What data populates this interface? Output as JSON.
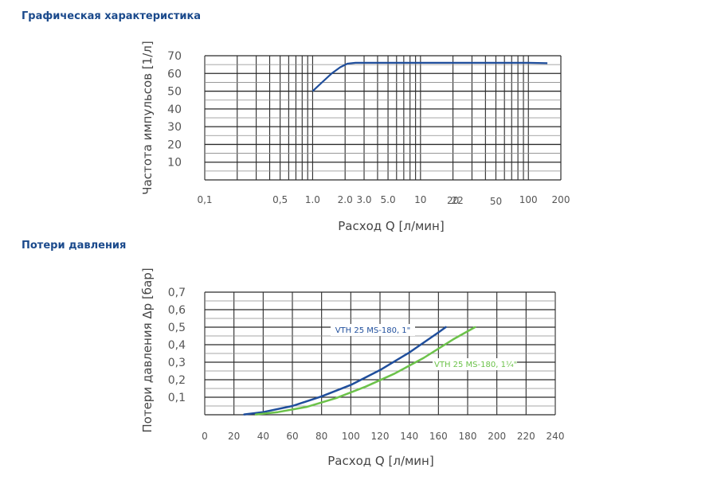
{
  "charts": {
    "characteristic": {
      "section_title": "Графическая характеристика"
    },
    "pressure_loss": {
      "section_title": "Потери давления"
    }
  },
  "chart_data": [
    {
      "type": "line",
      "title": "Графическая характеристика",
      "xlabel": "Расход Q [л/мин]",
      "ylabel": "Частота импульсов [1/л]",
      "xscale": "log",
      "xlim": [
        0.1,
        200
      ],
      "ylim": [
        0,
        70
      ],
      "grid": true,
      "x_tick_labels": [
        "0,1",
        "0,5",
        "1.0",
        "2.0",
        "3.0",
        "5.0",
        "10",
        "20",
        "22",
        "50",
        "100",
        "200"
      ],
      "x_tick_values": [
        0.1,
        0.5,
        1.0,
        2.0,
        3.0,
        5.0,
        10,
        20,
        22,
        50,
        100,
        200
      ],
      "y_tick_labels": [
        "10",
        "20",
        "30",
        "40",
        "50",
        "60",
        "70"
      ],
      "y_tick_values": [
        10,
        20,
        30,
        40,
        50,
        60,
        70
      ],
      "series": [
        {
          "color": "#1f4e9c",
          "x": [
            1.0,
            1.2,
            1.5,
            1.8,
            2.1,
            2.5,
            3.0,
            5.0,
            10,
            20,
            50,
            100,
            150
          ],
          "y": [
            50,
            54.5,
            60,
            63.5,
            65.5,
            66,
            66,
            66,
            66,
            66,
            66,
            66,
            65.8
          ]
        }
      ]
    },
    {
      "type": "line",
      "title": "Потери давления",
      "xlabel": "Расход Q [л/мин]",
      "ylabel": "Потери давления Δp [бар]",
      "xlim": [
        0,
        240
      ],
      "ylim": [
        0,
        0.7
      ],
      "grid": true,
      "x_tick_labels": [
        "0",
        "20",
        "40",
        "60",
        "80",
        "100",
        "120",
        "140",
        "160",
        "180",
        "200",
        "220",
        "240"
      ],
      "x_tick_values": [
        0,
        20,
        40,
        60,
        80,
        100,
        120,
        140,
        160,
        180,
        200,
        220,
        240
      ],
      "y_tick_labels": [
        "0,1",
        "0,2",
        "0,3",
        "0,4",
        "0,5",
        "0,6",
        "0,7"
      ],
      "y_tick_values": [
        0.1,
        0.2,
        0.3,
        0.4,
        0.5,
        0.6,
        0.7
      ],
      "series": [
        {
          "name": "VTH 25 MS-180, 1\"",
          "color": "#1f4e9c",
          "x": [
            27,
            40,
            60,
            80,
            100,
            120,
            140,
            160,
            165
          ],
          "y": [
            0.002,
            0.015,
            0.05,
            0.105,
            0.17,
            0.255,
            0.355,
            0.47,
            0.5
          ]
        },
        {
          "name": "VTH 25 MS-180, 1¼\"",
          "color": "#6cc24a",
          "x": [
            35,
            50,
            70,
            90,
            110,
            130,
            150,
            170,
            185
          ],
          "y": [
            0.002,
            0.015,
            0.045,
            0.095,
            0.16,
            0.235,
            0.325,
            0.43,
            0.5
          ]
        }
      ]
    }
  ]
}
